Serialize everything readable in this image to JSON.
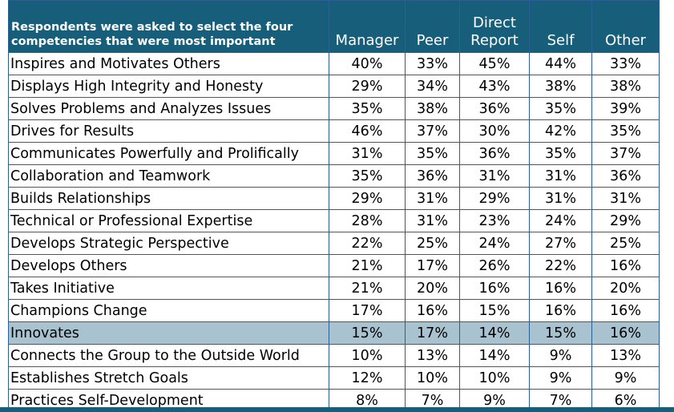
{
  "table": {
    "header": [
      "Respondents were asked to select the four competencies that were most important",
      "Manager",
      "Peer",
      "Direct Report",
      "Self",
      "Other"
    ],
    "highlight_row": 12,
    "rows": [
      [
        "Inspires and Motivates Others",
        "40%",
        "33%",
        "45%",
        "44%",
        "33%"
      ],
      [
        "Displays High Integrity and Honesty",
        "29%",
        "34%",
        "43%",
        "38%",
        "38%"
      ],
      [
        "Solves Problems and Analyzes Issues",
        "35%",
        "38%",
        "36%",
        "35%",
        "39%"
      ],
      [
        "Drives for Results",
        "46%",
        "37%",
        "30%",
        "42%",
        "35%"
      ],
      [
        "Communicates Powerfully and Prolifically",
        "31%",
        "35%",
        "36%",
        "35%",
        "37%"
      ],
      [
        "Collaboration and Teamwork",
        "35%",
        "36%",
        "31%",
        "31%",
        "36%"
      ],
      [
        "Builds Relationships",
        "29%",
        "31%",
        "29%",
        "31%",
        "31%"
      ],
      [
        "Technical or Professional Expertise",
        "28%",
        "31%",
        "23%",
        "24%",
        "29%"
      ],
      [
        "Develops Strategic Perspective",
        "22%",
        "25%",
        "24%",
        "27%",
        "25%"
      ],
      [
        "Develops Others",
        "21%",
        "17%",
        "26%",
        "22%",
        "16%"
      ],
      [
        "Takes Initiative",
        "21%",
        "20%",
        "16%",
        "16%",
        "20%"
      ],
      [
        "Champions Change",
        "17%",
        "16%",
        "15%",
        "16%",
        "16%"
      ],
      [
        "Innovates",
        "15%",
        "17%",
        "14%",
        "15%",
        "16%"
      ],
      [
        "Connects the Group to the Outside World",
        "10%",
        "13%",
        "14%",
        "9%",
        "13%"
      ],
      [
        "Establishes Stretch Goals",
        "12%",
        "10%",
        "10%",
        "9%",
        "9%"
      ],
      [
        "Practices Self-Development",
        "8%",
        "7%",
        "9%",
        "7%",
        "6%"
      ]
    ]
  }
}
